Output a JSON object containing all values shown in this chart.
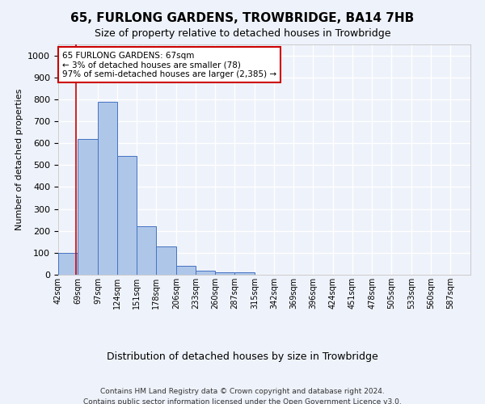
{
  "title": "65, FURLONG GARDENS, TROWBRIDGE, BA14 7HB",
  "subtitle": "Size of property relative to detached houses in Trowbridge",
  "xlabel": "Distribution of detached houses by size in Trowbridge",
  "ylabel": "Number of detached properties",
  "footer_line1": "Contains HM Land Registry data © Crown copyright and database right 2024.",
  "footer_line2": "Contains public sector information licensed under the Open Government Licence v3.0.",
  "bar_edges": [
    42,
    69,
    97,
    124,
    151,
    178,
    206,
    233,
    260,
    287,
    315,
    342,
    369,
    396,
    424,
    451,
    478,
    505,
    533,
    560,
    587
  ],
  "bar_heights": [
    100,
    620,
    790,
    540,
    220,
    130,
    42,
    17,
    10,
    12,
    0,
    0,
    0,
    0,
    0,
    0,
    0,
    0,
    0,
    0
  ],
  "bar_color": "#aec6e8",
  "bar_edge_color": "#4472c4",
  "property_x": 67,
  "property_line_color": "#cc0000",
  "annotation_line1": "65 FURLONG GARDENS: 67sqm",
  "annotation_line2": "← 3% of detached houses are smaller (78)",
  "annotation_line3": "97% of semi-detached houses are larger (2,385) →",
  "ylim": [
    0,
    1050
  ],
  "xlim": [
    42,
    615
  ],
  "bar_color_bg": "#eef2fa",
  "grid_color": "#ffffff",
  "title_fontsize": 11,
  "subtitle_fontsize": 9,
  "ylabel_fontsize": 8,
  "xlabel_fontsize": 9,
  "tick_fontsize": 7,
  "annotation_fontsize": 7.5,
  "footer_fontsize": 6.5
}
